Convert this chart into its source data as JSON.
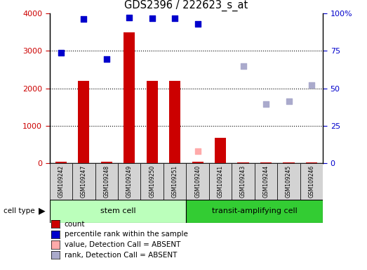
{
  "title": "GDS2396 / 222623_s_at",
  "samples": [
    "GSM109242",
    "GSM109247",
    "GSM109248",
    "GSM109249",
    "GSM109250",
    "GSM109251",
    "GSM109240",
    "GSM109241",
    "GSM109243",
    "GSM109244",
    "GSM109245",
    "GSM109246"
  ],
  "count_values": [
    50,
    2200,
    50,
    3500,
    2200,
    2200,
    50,
    680,
    30,
    30,
    30,
    30
  ],
  "percentile_values": [
    2950,
    3850,
    2780,
    3900,
    3870,
    3870,
    3730,
    null,
    null,
    null,
    null,
    null
  ],
  "absent_value_values": [
    null,
    null,
    null,
    null,
    null,
    null,
    320,
    null,
    null,
    null,
    null,
    null
  ],
  "absent_rank_values": [
    null,
    null,
    null,
    null,
    null,
    null,
    null,
    null,
    2600,
    1580,
    1660,
    2080
  ],
  "ylim_left": [
    0,
    4000
  ],
  "ylim_right": [
    0,
    100
  ],
  "yticks_left": [
    0,
    1000,
    2000,
    3000,
    4000
  ],
  "yticks_right": [
    0,
    25,
    50,
    75,
    100
  ],
  "yticklabels_right": [
    "0",
    "25",
    "50",
    "75",
    "100%"
  ],
  "count_color": "#cc0000",
  "percentile_color": "#0000cc",
  "absent_value_color": "#ffaaaa",
  "absent_rank_color": "#aaaacc",
  "bar_width": 0.5,
  "stem_cell_color": "#bbffbb",
  "transit_cell_color": "#33cc33",
  "legend_items": [
    {
      "color": "#cc0000",
      "label": "count"
    },
    {
      "color": "#0000cc",
      "label": "percentile rank within the sample"
    },
    {
      "color": "#ffaaaa",
      "label": "value, Detection Call = ABSENT"
    },
    {
      "color": "#aaaacc",
      "label": "rank, Detection Call = ABSENT"
    }
  ]
}
